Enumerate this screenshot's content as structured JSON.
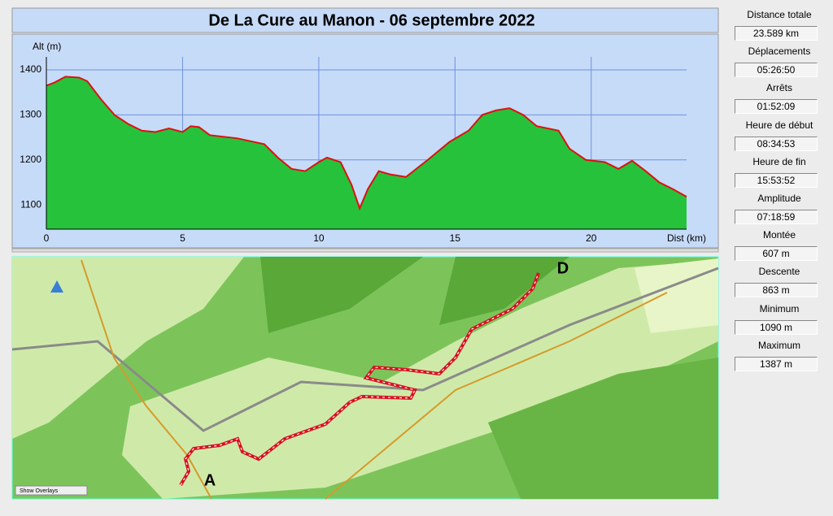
{
  "header": {
    "title": "De La Cure au Manon - 06 septembre 2022"
  },
  "chart_data": {
    "type": "area",
    "y_label": "Alt (m)",
    "x_label": "Dist (km)",
    "x": [
      0,
      0.3,
      0.7,
      1.2,
      1.5,
      2,
      2.5,
      3,
      3.5,
      4,
      4.5,
      5,
      5.3,
      5.6,
      6,
      7,
      8,
      8.5,
      9,
      9.5,
      10,
      10.3,
      10.8,
      11.2,
      11.5,
      11.8,
      12.2,
      12.6,
      13.2,
      14,
      14.8,
      15.5,
      16,
      16.5,
      17,
      17.5,
      18,
      18.8,
      19.2,
      19.8,
      20.5,
      21,
      21.5,
      22,
      22.5,
      23,
      23.5
    ],
    "values": [
      1365,
      1372,
      1385,
      1383,
      1375,
      1335,
      1300,
      1280,
      1265,
      1262,
      1270,
      1262,
      1275,
      1273,
      1255,
      1248,
      1235,
      1205,
      1180,
      1175,
      1195,
      1205,
      1195,
      1145,
      1092,
      1135,
      1175,
      1168,
      1162,
      1200,
      1240,
      1265,
      1300,
      1310,
      1315,
      1300,
      1275,
      1265,
      1225,
      1200,
      1195,
      1180,
      1198,
      1175,
      1150,
      1135,
      1118
    ],
    "color": "#26c23c",
    "line_color": "#e01010",
    "xlim": [
      0,
      23.5
    ],
    "ylim": [
      1046,
      1429
    ],
    "xticks": [
      0,
      5,
      10,
      15,
      20
    ],
    "yticks": [
      1100,
      1200,
      1300,
      1400
    ],
    "grid": true
  },
  "map": {
    "start_label": "A",
    "end_label": "D",
    "overlay_button": "Show Overlays"
  },
  "stats": [
    {
      "label": "Distance totale",
      "value": "23.589 km"
    },
    {
      "label": "Déplacements",
      "value": "05:26:50"
    },
    {
      "label": "Arrêts",
      "value": "01:52:09"
    },
    {
      "label": "Heure de début",
      "value": "08:34:53"
    },
    {
      "label": "Heure de fin",
      "value": "15:53:52"
    },
    {
      "label": "Amplitude",
      "value": "07:18:59"
    },
    {
      "label": "Montée",
      "value": "607 m"
    },
    {
      "label": "Descente",
      "value": "863 m"
    },
    {
      "label": "Minimum",
      "value": "1090 m"
    },
    {
      "label": "Maximum",
      "value": "1387 m"
    }
  ]
}
